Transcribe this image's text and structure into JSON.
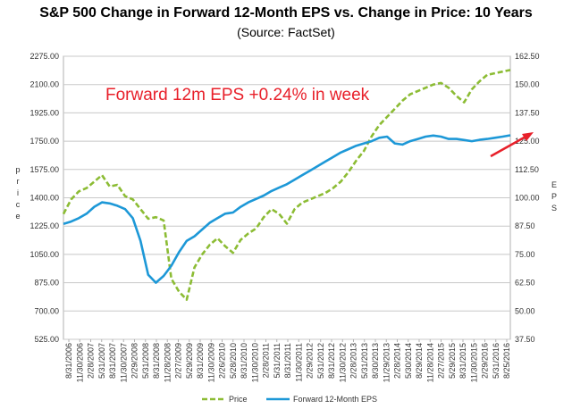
{
  "chart_data": {
    "type": "line",
    "title": "S&P 500 Change in Forward 12-Month EPS vs. Change in Price: 10 Years",
    "subtitle": "(Source: FactSet)",
    "ylabel_left": "Price",
    "ylabel_right": "EPS",
    "ylim_left": [
      525,
      2275
    ],
    "ylim_right": [
      37.5,
      162.5
    ],
    "yticks_left": [
      "2275.00",
      "2100.00",
      "1925.00",
      "1750.00",
      "1575.00",
      "1400.00",
      "1225.00",
      "1050.00",
      "875.00",
      "700.00",
      "525.00"
    ],
    "yticks_right": [
      "162.50",
      "150.00",
      "137.50",
      "125.00",
      "112.50",
      "100.00",
      "87.50",
      "75.00",
      "62.50",
      "50.00",
      "37.50"
    ],
    "xticks": [
      "8/31/2006",
      "11/30/2006",
      "2/28/2007",
      "5/31/2007",
      "8/31/2007",
      "11/30/2007",
      "2/29/2008",
      "5/31/2008",
      "8/31/2008",
      "11/28/2008",
      "2/27/2009",
      "5/29/2009",
      "8/31/2009",
      "11/30/2009",
      "2/26/2010",
      "5/28/2010",
      "8/31/2010",
      "11/30/2010",
      "2/28/2011",
      "5/31/2011",
      "8/31/2011",
      "11/30/2011",
      "2/29/2012",
      "5/31/2012",
      "8/31/2012",
      "11/30/2012",
      "2/28/2013",
      "5/31/2013",
      "8/30/2013",
      "11/29/2013",
      "2/28/2014",
      "5/30/2014",
      "8/29/2014",
      "11/28/2014",
      "2/27/2015",
      "5/29/2015",
      "8/31/2015",
      "11/30/2015",
      "2/29/2016",
      "5/31/2016",
      "8/25/2016"
    ],
    "annotation": "Forward 12m EPS +0.24% in week",
    "legend": [
      "Price",
      "Forward 12-Month EPS"
    ],
    "series": [
      {
        "name": "Price",
        "axis": "left",
        "color": "#8cbc34",
        "style": "dashed",
        "values": [
          1300,
          1390,
          1440,
          1460,
          1500,
          1540,
          1470,
          1480,
          1410,
          1390,
          1330,
          1270,
          1280,
          1260,
          900,
          820,
          770,
          970,
          1050,
          1110,
          1150,
          1100,
          1060,
          1140,
          1180,
          1210,
          1280,
          1330,
          1300,
          1240,
          1330,
          1370,
          1390,
          1410,
          1430,
          1460,
          1500,
          1560,
          1630,
          1690,
          1780,
          1850,
          1900,
          1950,
          2000,
          2040,
          2060,
          2080,
          2100,
          2110,
          2080,
          2030,
          1990,
          2070,
          2120,
          2160,
          2170,
          2180,
          2190
        ]
      },
      {
        "name": "Forward 12-Month EPS",
        "axis": "right",
        "color": "#1d98d7",
        "style": "solid",
        "values": [
          88.5,
          89.5,
          91,
          93,
          96,
          98,
          97.5,
          96.5,
          95,
          91,
          81,
          66,
          62.5,
          65.5,
          70,
          76,
          81,
          83,
          86,
          89,
          91,
          93,
          93.5,
          96,
          98,
          99.5,
          101,
          103,
          104.5,
          106,
          108,
          110,
          112,
          114,
          116,
          118,
          120,
          121.5,
          123,
          124,
          125,
          126.5,
          127,
          124,
          123.5,
          125,
          126,
          127,
          127.5,
          127,
          126,
          126,
          125.5,
          125,
          125.6,
          126,
          126.5,
          127,
          127.6
        ]
      }
    ]
  }
}
